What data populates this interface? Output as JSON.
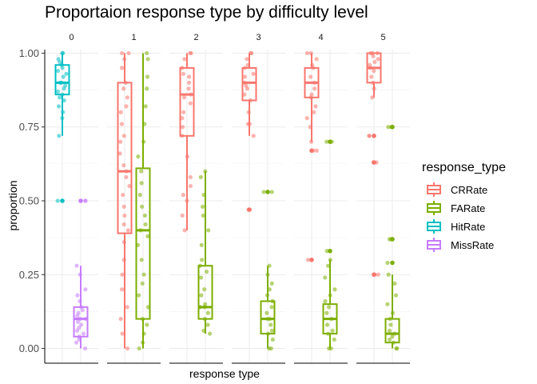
{
  "chart_data": {
    "type": "box",
    "title": "Proportaion response type by difficulty level",
    "xlabel": "response type",
    "ylabel": "proportion",
    "ylim": [
      -0.05,
      1.05
    ],
    "yticks": [
      "0.00",
      "0.25",
      "0.50",
      "0.75",
      "1.00"
    ],
    "ytick_values": [
      0,
      0.25,
      0.5,
      0.75,
      1.0
    ],
    "grid": true,
    "facets": [
      "0",
      "1",
      "2",
      "3",
      "4",
      "5"
    ],
    "legend": {
      "title": "response_type",
      "position": "right",
      "entries": [
        {
          "name": "CRRate",
          "color": "#F8766D"
        },
        {
          "name": "FARate",
          "color": "#7CAE00"
        },
        {
          "name": "HitRate",
          "color": "#00BFC4"
        },
        {
          "name": "MissRate",
          "color": "#C77CFF"
        }
      ]
    },
    "boxes": [
      {
        "facet": "0",
        "type": "HitRate",
        "slot": 0,
        "min": 0.72,
        "q1": 0.86,
        "median": 0.9,
        "q3": 0.96,
        "max": 1.0,
        "outliers": [
          0.5
        ]
      },
      {
        "facet": "0",
        "type": "MissRate",
        "slot": 1,
        "min": 0.0,
        "q1": 0.04,
        "median": 0.1,
        "q3": 0.14,
        "max": 0.28,
        "outliers": [
          0.5
        ]
      },
      {
        "facet": "1",
        "type": "CRRate",
        "slot": 0,
        "min": 0.0,
        "q1": 0.39,
        "median": 0.6,
        "q3": 0.9,
        "max": 1.0,
        "outliers": []
      },
      {
        "facet": "1",
        "type": "FARate",
        "slot": 1,
        "min": 0.0,
        "q1": 0.1,
        "median": 0.4,
        "q3": 0.61,
        "max": 1.0,
        "outliers": []
      },
      {
        "facet": "2",
        "type": "CRRate",
        "slot": 0,
        "min": 0.4,
        "q1": 0.72,
        "median": 0.86,
        "q3": 0.95,
        "max": 1.0,
        "outliers": []
      },
      {
        "facet": "2",
        "type": "FARate",
        "slot": 1,
        "min": 0.05,
        "q1": 0.1,
        "median": 0.14,
        "q3": 0.28,
        "max": 0.6,
        "outliers": []
      },
      {
        "facet": "3",
        "type": "CRRate",
        "slot": 0,
        "min": 0.72,
        "q1": 0.84,
        "median": 0.9,
        "q3": 0.95,
        "max": 1.0,
        "outliers": [
          0.47
        ]
      },
      {
        "facet": "3",
        "type": "FARate",
        "slot": 1,
        "min": 0.0,
        "q1": 0.05,
        "median": 0.1,
        "q3": 0.16,
        "max": 0.28,
        "outliers": [
          0.53
        ]
      },
      {
        "facet": "4",
        "type": "CRRate",
        "slot": 0,
        "min": 0.7,
        "q1": 0.85,
        "median": 0.9,
        "q3": 0.95,
        "max": 1.0,
        "outliers": [
          0.67,
          0.3
        ]
      },
      {
        "facet": "4",
        "type": "FARate",
        "slot": 1,
        "min": 0.0,
        "q1": 0.05,
        "median": 0.1,
        "q3": 0.15,
        "max": 0.3,
        "outliers": [
          0.7,
          0.33
        ]
      },
      {
        "facet": "5",
        "type": "CRRate",
        "slot": 0,
        "min": 0.85,
        "q1": 0.9,
        "median": 0.95,
        "q3": 1.0,
        "max": 1.0,
        "outliers": [
          0.72,
          0.63,
          0.25
        ]
      },
      {
        "facet": "5",
        "type": "FARate",
        "slot": 1,
        "min": 0.0,
        "q1": 0.02,
        "median": 0.05,
        "q3": 0.1,
        "max": 0.25,
        "outliers": [
          0.75,
          0.37,
          0.29
        ]
      }
    ],
    "points": [
      {
        "facet": "0",
        "type": "HitRate",
        "values": [
          1.0,
          1.0,
          0.98,
          0.97,
          0.96,
          0.95,
          0.94,
          0.93,
          0.92,
          0.9,
          0.9,
          0.89,
          0.88,
          0.87,
          0.86,
          0.85,
          0.84,
          0.82,
          0.8,
          0.78,
          0.72,
          0.5
        ]
      },
      {
        "facet": "0",
        "type": "MissRate",
        "values": [
          0.5,
          0.5,
          0.28,
          0.25,
          0.2,
          0.18,
          0.16,
          0.14,
          0.13,
          0.12,
          0.11,
          0.1,
          0.1,
          0.09,
          0.08,
          0.07,
          0.06,
          0.05,
          0.04,
          0.03,
          0.02,
          0.0
        ]
      },
      {
        "facet": "1",
        "type": "CRRate",
        "values": [
          1.0,
          1.0,
          0.98,
          0.95,
          0.9,
          0.88,
          0.85,
          0.82,
          0.8,
          0.76,
          0.72,
          0.7,
          0.66,
          0.62,
          0.6,
          0.58,
          0.55,
          0.52,
          0.48,
          0.45,
          0.42,
          0.4,
          0.36,
          0.3,
          0.25,
          0.2,
          0.14,
          0.1,
          0.05,
          0.0
        ]
      },
      {
        "facet": "1",
        "type": "FARate",
        "values": [
          1.0,
          0.98,
          0.92,
          0.88,
          0.82,
          0.76,
          0.7,
          0.65,
          0.6,
          0.56,
          0.52,
          0.48,
          0.45,
          0.42,
          0.4,
          0.38,
          0.35,
          0.3,
          0.25,
          0.22,
          0.18,
          0.14,
          0.1,
          0.08,
          0.05,
          0.02,
          0.0
        ]
      },
      {
        "facet": "2",
        "type": "CRRate",
        "values": [
          1.0,
          1.0,
          0.98,
          0.95,
          0.93,
          0.92,
          0.9,
          0.88,
          0.86,
          0.85,
          0.83,
          0.8,
          0.78,
          0.75,
          0.72,
          0.65,
          0.58,
          0.55,
          0.52,
          0.5,
          0.45,
          0.4
        ]
      },
      {
        "facet": "2",
        "type": "FARate",
        "values": [
          0.6,
          0.58,
          0.52,
          0.48,
          0.45,
          0.4,
          0.35,
          0.3,
          0.28,
          0.26,
          0.24,
          0.2,
          0.18,
          0.15,
          0.14,
          0.14,
          0.12,
          0.1,
          0.08,
          0.06,
          0.05
        ]
      },
      {
        "facet": "3",
        "type": "CRRate",
        "values": [
          1.0,
          1.0,
          0.98,
          0.96,
          0.95,
          0.93,
          0.92,
          0.9,
          0.89,
          0.88,
          0.86,
          0.84,
          0.8,
          0.76,
          0.76,
          0.72,
          0.47,
          0.47
        ]
      },
      {
        "facet": "3",
        "type": "FARate",
        "values": [
          0.53,
          0.53,
          0.28,
          0.25,
          0.22,
          0.2,
          0.18,
          0.16,
          0.14,
          0.12,
          0.1,
          0.1,
          0.08,
          0.06,
          0.05,
          0.03,
          0.0,
          0.0
        ]
      },
      {
        "facet": "4",
        "type": "CRRate",
        "values": [
          1.0,
          1.0,
          0.98,
          0.96,
          0.95,
          0.92,
          0.9,
          0.88,
          0.86,
          0.85,
          0.82,
          0.8,
          0.78,
          0.75,
          0.7,
          0.67,
          0.67,
          0.3
        ]
      },
      {
        "facet": "4",
        "type": "FARate",
        "values": [
          0.7,
          0.7,
          0.33,
          0.3,
          0.28,
          0.24,
          0.2,
          0.18,
          0.16,
          0.14,
          0.12,
          0.1,
          0.08,
          0.06,
          0.05,
          0.03,
          0.0,
          0.0
        ]
      },
      {
        "facet": "5",
        "type": "CRRate",
        "values": [
          1.0,
          1.0,
          1.0,
          0.99,
          0.98,
          0.97,
          0.96,
          0.95,
          0.94,
          0.92,
          0.9,
          0.88,
          0.85,
          0.72,
          0.72,
          0.63,
          0.63,
          0.25,
          0.25
        ]
      },
      {
        "facet": "5",
        "type": "FARate",
        "values": [
          0.75,
          0.75,
          0.37,
          0.37,
          0.29,
          0.25,
          0.22,
          0.18,
          0.15,
          0.12,
          0.1,
          0.08,
          0.06,
          0.05,
          0.04,
          0.03,
          0.02,
          0.0,
          0.0
        ]
      }
    ]
  }
}
